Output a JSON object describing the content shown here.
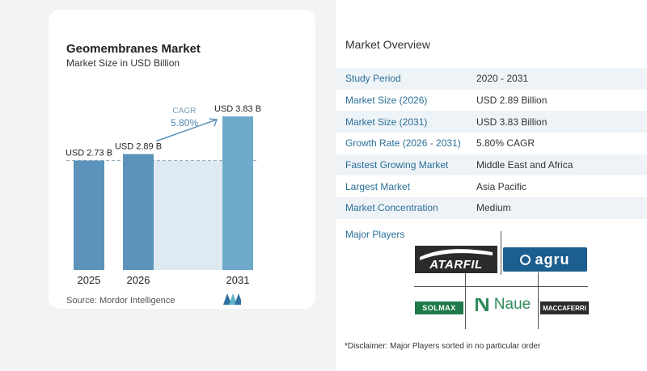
{
  "chart_data": {
    "type": "bar",
    "title": "Geomembranes Market",
    "subtitle": "Market Size in USD Billion",
    "categories": [
      "2025",
      "2026",
      "2031"
    ],
    "values": [
      2.73,
      2.89,
      3.83
    ],
    "data_labels": [
      "USD 2.73 B",
      "USD 2.89 B",
      "USD 3.83 B"
    ],
    "cagr_label": "CAGR",
    "cagr_value": "5.80%",
    "ylim": [
      0,
      3.83
    ],
    "grid": false,
    "colors": {
      "bar": "#5b93ba",
      "bar_light": "#6fa9cc",
      "shade": "#dfe9f1",
      "arrow": "#5b93ba"
    }
  },
  "source": "Source:  Mordor Intelligence",
  "overview": {
    "title": "Market Overview",
    "rows": [
      {
        "label": "Study Period",
        "value": "2020 - 2031"
      },
      {
        "label": "Market Size (2026)",
        "value": "USD 2.89 Billion"
      },
      {
        "label": "Market Size (2031)",
        "value": "USD 3.83 Billion"
      },
      {
        "label": "Growth Rate (2026 - 2031)",
        "value": "5.80% CAGR"
      },
      {
        "label": "Fastest Growing Market",
        "value": "Middle East and Africa"
      },
      {
        "label": "Largest Market",
        "value": "Asia Pacific"
      },
      {
        "label": "Market Concentration",
        "value": "Medium"
      }
    ],
    "players_title": "Major Players",
    "players": [
      "ATARFIL",
      "agru",
      "SOLMAX",
      "Naue",
      "MACCAFERRI"
    ],
    "disclaimer": "*Disclaimer: Major Players sorted in no particular order"
  }
}
